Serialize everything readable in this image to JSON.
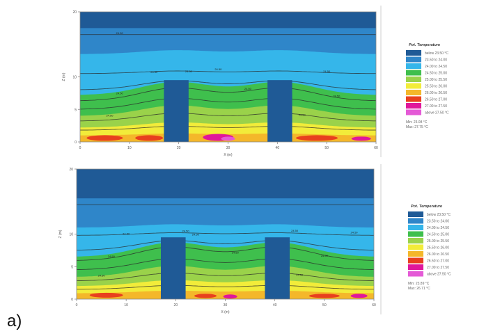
{
  "figure": {
    "sublabel": "a)"
  },
  "chart_data": [
    {
      "type": "heatmap",
      "title": "",
      "xlabel": "X (m)",
      "ylabel": "Z (m)",
      "xlim": [
        0,
        60
      ],
      "ylim": [
        0,
        20
      ],
      "x_ticks": [
        "0",
        "10",
        "20",
        "30",
        "40",
        "50",
        "60"
      ],
      "y_ticks": [
        "0",
        "5",
        "10",
        "20"
      ],
      "legend_title": "Pot. Temperature",
      "legend": [
        {
          "label": "below 23.50 °C",
          "color": "#1f5a96"
        },
        {
          "label": "23.50 to 24.00",
          "color": "#2f86c9"
        },
        {
          "label": "24.00 to 24.50",
          "color": "#35b6ea"
        },
        {
          "label": "24.50 to 25.00",
          "color": "#3fbf4d"
        },
        {
          "label": "25.00 to 25.50",
          "color": "#9ad24a"
        },
        {
          "label": "25.50 to 26.00",
          "color": "#f2ec3a"
        },
        {
          "label": "26.00 to 26.50",
          "color": "#f4b72a"
        },
        {
          "label": "26.50 to 27.00",
          "color": "#e8401e"
        },
        {
          "label": "27.00 to 27.50",
          "color": "#e0179b"
        },
        {
          "label": "above 27.50 °C",
          "color": "#e45ad6"
        }
      ],
      "stats": {
        "min": "Min: 23.08 °C",
        "max": "Max: 27.75 °C"
      },
      "buildings": [
        [
          17,
          22
        ],
        [
          38,
          43
        ]
      ],
      "building_height": 9.5,
      "contour_label": "24.50"
    },
    {
      "type": "heatmap",
      "title": "",
      "xlabel": "X (m)",
      "ylabel": "Z (m)",
      "xlim": [
        0,
        60
      ],
      "ylim": [
        0,
        20
      ],
      "x_ticks": [
        "0",
        "10",
        "20",
        "30",
        "40",
        "50",
        "60"
      ],
      "y_ticks": [
        "0",
        "5",
        "10",
        "20"
      ],
      "legend_title": "Pot. Temperature",
      "legend": [
        {
          "label": "below 23.50 °C",
          "color": "#1f5a96"
        },
        {
          "label": "23.50 to 24.00",
          "color": "#2f86c9"
        },
        {
          "label": "24.00 to 24.50",
          "color": "#35b6ea"
        },
        {
          "label": "24.50 to 25.00",
          "color": "#3fbf4d"
        },
        {
          "label": "25.00 to 25.50",
          "color": "#9ad24a"
        },
        {
          "label": "25.50 to 26.00",
          "color": "#f2ec3a"
        },
        {
          "label": "26.00 to 26.50",
          "color": "#f4b72a"
        },
        {
          "label": "26.50 to 27.00",
          "color": "#e8401e"
        },
        {
          "label": "27.00 to 27.50",
          "color": "#e0179b"
        },
        {
          "label": "above 27.50 °C",
          "color": "#e45ad6"
        }
      ],
      "stats": {
        "min": "Min: 23.89 °C",
        "max": "Max: 26.71 °C"
      },
      "buildings": [
        [
          17,
          22
        ],
        [
          38,
          43
        ]
      ],
      "building_height": 9.5,
      "contour_label": "24.50"
    }
  ]
}
